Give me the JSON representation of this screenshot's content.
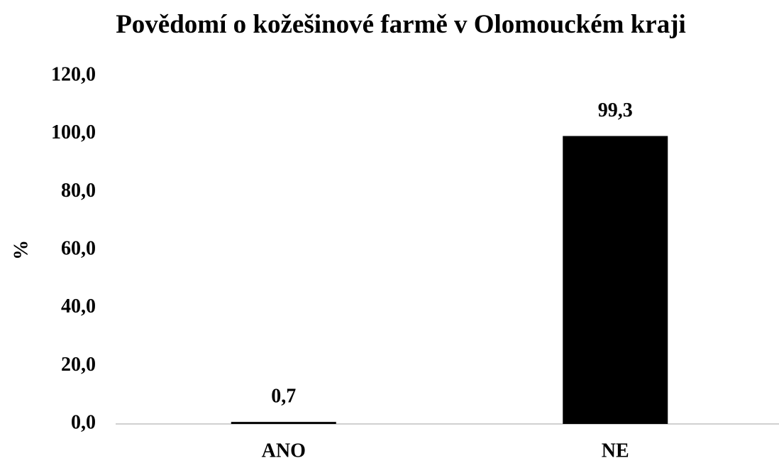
{
  "chart_data": {
    "type": "bar",
    "title": "Povědomí o kožešinové farmě v Olomouckém kraji",
    "y_label": "%",
    "categories": [
      "ANO",
      "NE"
    ],
    "values": [
      0.7,
      99.3
    ],
    "value_labels": [
      "0,7",
      "99,3"
    ],
    "color": "#000000",
    "ylim": [
      0,
      120
    ],
    "yticks": [
      {
        "value": 0,
        "label": "0,0"
      },
      {
        "value": 20,
        "label": "20,0"
      },
      {
        "value": 40,
        "label": "40,0"
      },
      {
        "value": 60,
        "label": "60,0"
      },
      {
        "value": 80,
        "label": "80,0"
      },
      {
        "value": 100,
        "label": "100,0"
      },
      {
        "value": 120,
        "label": "120,0"
      }
    ],
    "grid": false
  }
}
